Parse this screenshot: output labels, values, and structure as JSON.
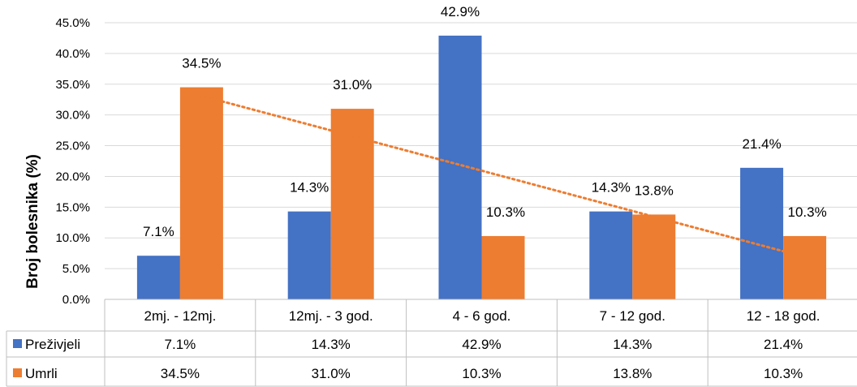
{
  "chart_data": {
    "type": "bar",
    "ylabel": "Broj bolesnika (%)",
    "ylim": [
      0,
      45
    ],
    "y_ticks": [
      "0.0%",
      "5.0%",
      "10.0%",
      "15.0%",
      "20.0%",
      "25.0%",
      "30.0%",
      "35.0%",
      "40.0%",
      "45.0%"
    ],
    "grid": true,
    "categories": [
      "2mj. - 12mj.",
      "12mj. - 3 god.",
      "4 - 6 god.",
      "7 - 12 god.",
      "12 - 18 god."
    ],
    "series": [
      {
        "name": "Preživjeli",
        "color": "#4472C4",
        "values": [
          7.1,
          14.3,
          42.9,
          14.3,
          21.4
        ],
        "labels": [
          "7.1%",
          "14.3%",
          "42.9%",
          "14.3%",
          "21.4%"
        ]
      },
      {
        "name": "Umrli",
        "color": "#ED7D31",
        "values": [
          34.5,
          31.0,
          10.3,
          13.8,
          10.3
        ],
        "labels": [
          "34.5%",
          "31.0%",
          "10.3%",
          "13.8%",
          "10.3%"
        ]
      }
    ],
    "trendline": {
      "series": "Umrli",
      "style": "dotted",
      "color": "#ED7D31",
      "start": 33.1,
      "end": 6.9
    },
    "data_table": true
  }
}
